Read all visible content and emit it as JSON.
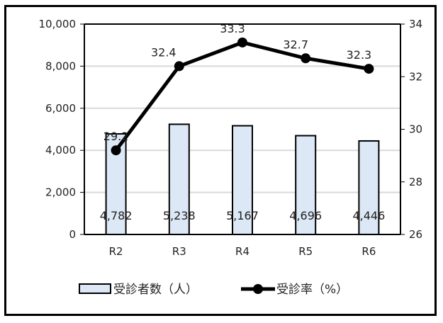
{
  "chart_data": {
    "type": "bar+line",
    "title": "",
    "categories": [
      "R2",
      "R3",
      "R4",
      "R5",
      "R6"
    ],
    "series": [
      {
        "name": "受診者数（人）",
        "type": "bar",
        "axis": "left",
        "values": [
          4782,
          5238,
          5167,
          4696,
          4446
        ],
        "labels": [
          "4,782",
          "5,238",
          "5,167",
          "4,696",
          "4,446"
        ],
        "color": "#dce8f5",
        "border": "#000000"
      },
      {
        "name": "受診率（%）",
        "type": "line",
        "axis": "right",
        "values": [
          29.2,
          32.4,
          33.3,
          32.7,
          32.3
        ],
        "labels": [
          "29.2",
          "32.4",
          "33.3",
          "32.7",
          "32.3"
        ],
        "color": "#000000",
        "marker": "circle"
      }
    ],
    "y_left": {
      "label": "",
      "ylim": [
        0,
        10000
      ],
      "ticks": [
        0,
        2000,
        4000,
        6000,
        8000,
        10000
      ],
      "tick_labels": [
        "0",
        "2,000",
        "4,000",
        "6,000",
        "8,000",
        "10,000"
      ]
    },
    "y_right": {
      "label": "",
      "ylim": [
        26,
        34
      ],
      "ticks": [
        26,
        28,
        30,
        32,
        34
      ],
      "tick_labels": [
        "26",
        "28",
        "30",
        "32",
        "34"
      ]
    },
    "xlabel": "",
    "grid": true,
    "grid_color": "#d9d9d9",
    "legend_position": "bottom"
  },
  "legend": {
    "bar_label": "受診者数（人）",
    "line_label": "受診率（%）"
  }
}
